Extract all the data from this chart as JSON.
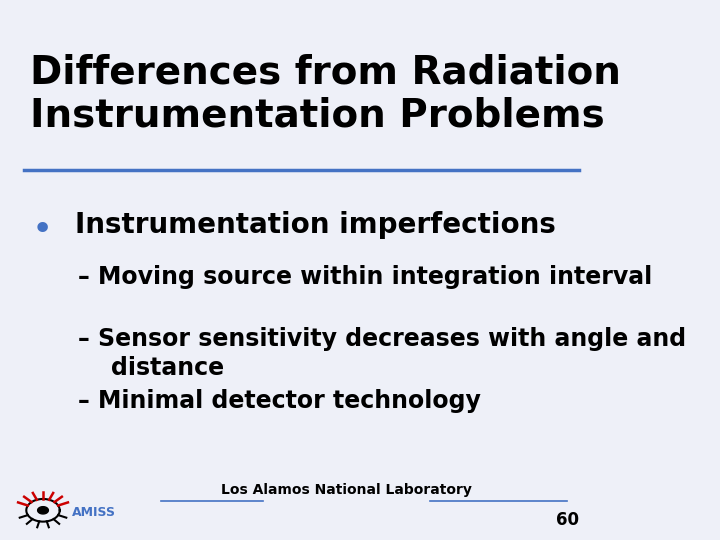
{
  "title_line1": "Differences from Radiation",
  "title_line2": "Instrumentation Problems",
  "title_fontsize": 28,
  "title_color": "#000000",
  "title_underline_color": "#4472C4",
  "bullet_color": "#4472C4",
  "bullet_text": "Instrumentation imperfections",
  "bullet_fontsize": 20,
  "sub_items": [
    "– Moving source within integration interval",
    "– Sensor sensitivity decreases with angle and\n    distance",
    "– Minimal detector technology"
  ],
  "sub_fontsize": 17,
  "footer_text": "Los Alamos National Laboratory",
  "footer_fontsize": 10,
  "page_number": "60",
  "background_color": "#eef0f8",
  "text_color": "#000000",
  "line_color": "#4472C4"
}
